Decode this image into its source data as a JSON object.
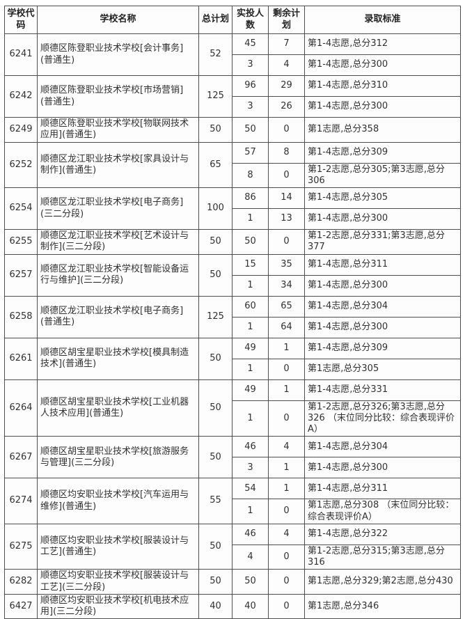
{
  "colors": {
    "page_bg": "#ffffff",
    "table_bg": "#fdfdfd",
    "border": "#4e4e4e",
    "text": "#303030"
  },
  "table": {
    "headers": [
      "学校代码",
      "学校名称",
      "总计划",
      "实投人数",
      "剩余计划",
      "录取标准"
    ],
    "schools": [
      {
        "code": "6241",
        "name": "顺德区陈登职业技术学校[会计事务](普通生)",
        "plan": "52",
        "rows": [
          {
            "admitted": "45",
            "remaining": "7",
            "criteria": "第1-4志愿,总分312"
          },
          {
            "admitted": "3",
            "remaining": "4",
            "criteria": "第1-4志愿,总分300"
          }
        ]
      },
      {
        "code": "6242",
        "name": "顺德区陈登职业技术学校[市场营销](普通生)",
        "plan": "125",
        "rows": [
          {
            "admitted": "96",
            "remaining": "29",
            "criteria": "第1-4志愿,总分310"
          },
          {
            "admitted": "3",
            "remaining": "26",
            "criteria": "第1-4志愿,总分300"
          }
        ]
      },
      {
        "code": "6249",
        "name": "顺德区陈登职业技术学校[物联网技术应用](普通生)",
        "plan": "50",
        "rows": [
          {
            "admitted": "50",
            "remaining": "0",
            "criteria": "第1志愿,总分358"
          }
        ]
      },
      {
        "code": "6252",
        "name": "顺德区龙江职业技术学校[家具设计与制作](普通生)",
        "plan": "65",
        "rows": [
          {
            "admitted": "57",
            "remaining": "8",
            "criteria": "第1-4志愿,总分309"
          },
          {
            "admitted": "8",
            "remaining": "0",
            "criteria": "第1-2志愿,总分305;第3志愿,总分306"
          }
        ]
      },
      {
        "code": "6254",
        "name": "顺德区龙江职业技术学校[电子商务](三二分段)",
        "plan": "100",
        "rows": [
          {
            "admitted": "86",
            "remaining": "14",
            "criteria": "第1-4志愿,总分305"
          },
          {
            "admitted": "1",
            "remaining": "13",
            "criteria": "第1-4志愿,总分300"
          }
        ]
      },
      {
        "code": "6255",
        "name": "顺德区龙江职业技术学校[艺术设计与制作](三二分段)",
        "plan": "50",
        "rows": [
          {
            "admitted": "50",
            "remaining": "0",
            "criteria": "第1-2志愿,总分331;第3志愿,总分377"
          }
        ]
      },
      {
        "code": "6257",
        "name": "顺德区龙江职业技术学校[智能设备运行与维护](三二分段)",
        "plan": "50",
        "rows": [
          {
            "admitted": "15",
            "remaining": "35",
            "criteria": "第1-4志愿,总分311"
          },
          {
            "admitted": "1",
            "remaining": "34",
            "criteria": "第1-4志愿,总分300"
          }
        ]
      },
      {
        "code": "6258",
        "name": "顺德区龙江职业技术学校[电子商务](普通生)",
        "plan": "125",
        "rows": [
          {
            "admitted": "60",
            "remaining": "65",
            "criteria": "第1-4志愿,总分304"
          },
          {
            "admitted": "1",
            "remaining": "64",
            "criteria": "第1-4志愿,总分300"
          }
        ]
      },
      {
        "code": "6261",
        "name": "顺德区胡宝星职业技术学校[模具制造技术](普通生)",
        "plan": "50",
        "rows": [
          {
            "admitted": "49",
            "remaining": "1",
            "criteria": "第1-4志愿,总分309"
          },
          {
            "admitted": "1",
            "remaining": "0",
            "criteria": "第1志愿,总分305"
          }
        ]
      },
      {
        "code": "6264",
        "name": "顺德区胡宝星职业技术学校[工业机器人技术应用](普通生)",
        "plan": "50",
        "rows": [
          {
            "admitted": "49",
            "remaining": "1",
            "criteria": "第1-4志愿,总分331"
          },
          {
            "admitted": "1",
            "remaining": "0",
            "criteria": "第1-2志愿,总分326;第3志愿,总分326 （末位同分比较：综合表现评价A）"
          }
        ]
      },
      {
        "code": "6267",
        "name": "顺德区胡宝星职业技术学校[旅游服务与管理](三二分段)",
        "plan": "50",
        "rows": [
          {
            "admitted": "46",
            "remaining": "4",
            "criteria": "第1-4志愿,总分304"
          },
          {
            "admitted": "3",
            "remaining": "1",
            "criteria": "第1-4志愿,总分300"
          }
        ]
      },
      {
        "code": "6274",
        "name": "顺德区均安职业技术学校[汽车运用与维修](普通生)",
        "plan": "55",
        "rows": [
          {
            "admitted": "54",
            "remaining": "1",
            "criteria": "第1-4志愿,总分311"
          },
          {
            "admitted": "1",
            "remaining": "0",
            "criteria": "第1志愿,总分308 （末位同分比较：综合表现评价A）"
          }
        ]
      },
      {
        "code": "6275",
        "name": "顺德区均安职业技术学校[服装设计与工艺](普通生)",
        "plan": "50",
        "rows": [
          {
            "admitted": "46",
            "remaining": "4",
            "criteria": "第1-4志愿,总分322"
          },
          {
            "admitted": "4",
            "remaining": "0",
            "criteria": "第1-2志愿,总分315;第3志愿,总分316"
          }
        ]
      },
      {
        "code": "6282",
        "name": "顺德区均安职业技术学校[服装设计与工艺](三二分段)",
        "plan": "50",
        "rows": [
          {
            "admitted": "50",
            "remaining": "0",
            "criteria": "第1志愿,总分329;第2志愿,总分430"
          }
        ]
      },
      {
        "code": "6427",
        "name": "顺德区均安职业技术学校[机电技术应用](三二分段)",
        "plan": "40",
        "rows": [
          {
            "admitted": "40",
            "remaining": "0",
            "criteria": "第1志愿,总分346"
          }
        ]
      }
    ]
  }
}
